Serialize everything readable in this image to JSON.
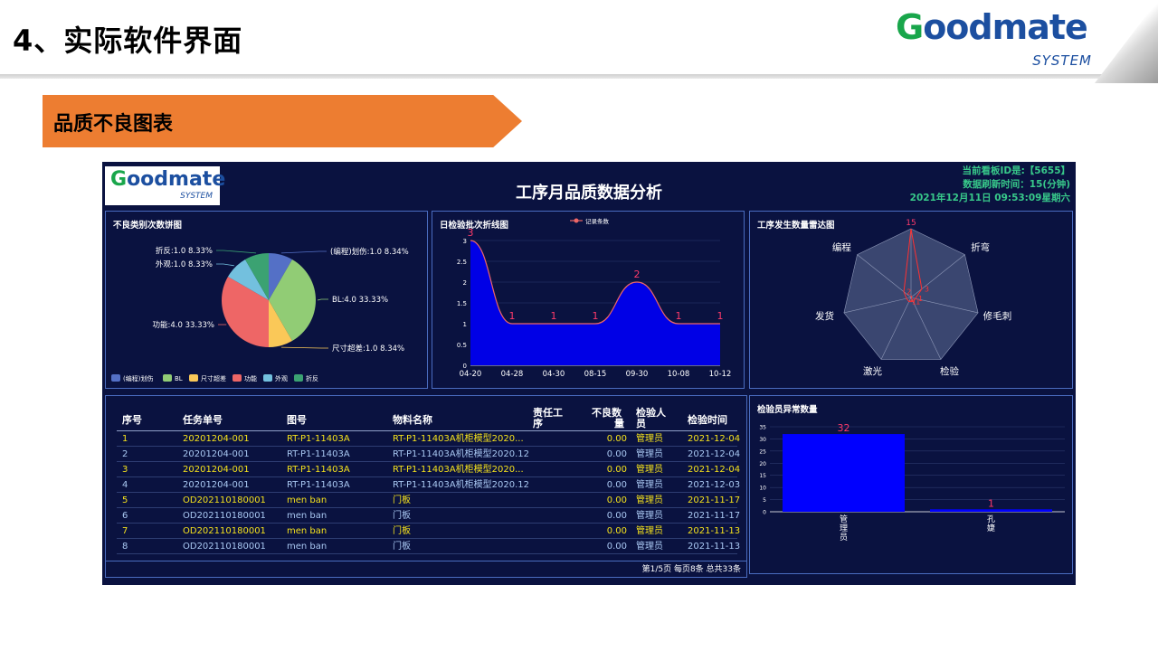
{
  "slide": {
    "title": "4、实际软件界面",
    "section": "品质不良图表",
    "logo_brand_g": "G",
    "logo_brand_rest": "oodmate",
    "logo_sub": "SYSTEM"
  },
  "dashboard": {
    "title": "工序月品质数据分析",
    "board_id": "当前看板ID是:【5655】",
    "refresh": "数据刷新时间：15(分钟)",
    "datetime": "2021年12月11日 09:53:09星期六"
  },
  "pie": {
    "title": "不良类别次数饼图",
    "slices": [
      {
        "name": "(编程)划伤",
        "value": 1.0,
        "percent": "8.34%",
        "label": "(编程)划伤:1.0 8.34%",
        "color": "#5470c6"
      },
      {
        "name": "BL",
        "value": 4.0,
        "percent": "33.33%",
        "label": "BL:4.0 33.33%",
        "color": "#91cc75"
      },
      {
        "name": "尺寸超差",
        "value": 1.0,
        "percent": "8.34%",
        "label": "尺寸超差:1.0 8.34%",
        "color": "#fac858"
      },
      {
        "name": "功能",
        "value": 4.0,
        "percent": "33.33%",
        "label": "功能:4.0 33.33%",
        "color": "#ee6666"
      },
      {
        "name": "外观",
        "value": 1.0,
        "percent": "8.33%",
        "label": "外观:1.0 8.33%",
        "color": "#73c0de"
      },
      {
        "name": "折反",
        "value": 1.0,
        "percent": "8.33%",
        "label": "折反:1.0 8.33%",
        "color": "#3ba272"
      }
    ]
  },
  "line": {
    "title": "日检验批次折线图",
    "legend": "记录条数",
    "x": [
      "04-20",
      "04-28",
      "04-30",
      "08-15",
      "09-30",
      "10-08",
      "10-12"
    ],
    "y": [
      3,
      1,
      1,
      1,
      2,
      1,
      1
    ],
    "yticks": [
      "0",
      "0.5",
      "1",
      "1.5",
      "2",
      "2.5",
      "3"
    ],
    "ylim": [
      0,
      3
    ]
  },
  "radar": {
    "title": "工序发生数量雷达图",
    "max": 15,
    "axes": [
      {
        "name": "折弯",
        "value": 3
      },
      {
        "name": "修毛刺",
        "value": 1
      },
      {
        "name": "检验",
        "value": 1
      },
      {
        "name": "激光",
        "value": 1
      },
      {
        "name": "发货",
        "value": 1
      },
      {
        "name": "编程",
        "value": 2
      }
    ],
    "top_value": 15,
    "top_value_label": "15"
  },
  "table": {
    "headers": {
      "seq": "序号",
      "task": "任务单号",
      "drawing": "图号",
      "material": "物料名称",
      "process_l1": "责任工",
      "process_l2": "序",
      "qty_l1": "不良数",
      "qty_l2": "量",
      "inspector_l1": "检验人",
      "inspector_l2": "员",
      "time": "检验时间"
    },
    "rows": [
      {
        "seq": "1",
        "task": "20201204-001",
        "drawing": "RT-P1-11403A",
        "material": "RT-P1-11403A机柜模型2020...",
        "qty": "0.00",
        "inspector": "管理员",
        "time": "2021-12-04",
        "color": "#f5e21c"
      },
      {
        "seq": "2",
        "task": "20201204-001",
        "drawing": "RT-P1-11403A",
        "material": "RT-P1-11403A机柜模型2020.12",
        "qty": "0.00",
        "inspector": "管理员",
        "time": "2021-12-04",
        "color": "#a9c8f2"
      },
      {
        "seq": "3",
        "task": "20201204-001",
        "drawing": "RT-P1-11403A",
        "material": "RT-P1-11403A机柜模型2020...",
        "qty": "0.00",
        "inspector": "管理员",
        "time": "2021-12-04",
        "color": "#f5e21c"
      },
      {
        "seq": "4",
        "task": "20201204-001",
        "drawing": "RT-P1-11403A",
        "material": "RT-P1-11403A机柜模型2020.12",
        "qty": "0.00",
        "inspector": "管理员",
        "time": "2021-12-03",
        "color": "#a9c8f2"
      },
      {
        "seq": "5",
        "task": "OD202110180001",
        "drawing": "men ban",
        "material": "门板",
        "qty": "0.00",
        "inspector": "管理员",
        "time": "2021-11-17",
        "color": "#f5e21c"
      },
      {
        "seq": "6",
        "task": "OD202110180001",
        "drawing": "men ban",
        "material": "门板",
        "qty": "0.00",
        "inspector": "管理员",
        "time": "2021-11-17",
        "color": "#a9c8f2"
      },
      {
        "seq": "7",
        "task": "OD202110180001",
        "drawing": "men ban",
        "material": "门板",
        "qty": "0.00",
        "inspector": "管理员",
        "time": "2021-11-13",
        "color": "#f5e21c"
      },
      {
        "seq": "8",
        "task": "OD202110180001",
        "drawing": "men ban",
        "material": "门板",
        "qty": "0.00",
        "inspector": "管理员",
        "time": "2021-11-13",
        "color": "#a9c8f2"
      }
    ],
    "pager": "第1/5页 每页8条 总共33条"
  },
  "bar": {
    "title": "检验员异常数量",
    "categories": [
      "管理员",
      "孔婕"
    ],
    "values": [
      32,
      1
    ],
    "yticks": [
      "0",
      "5",
      "10",
      "15",
      "20",
      "25",
      "30",
      "35"
    ],
    "ylim": [
      0,
      35
    ],
    "color": "#0000ff"
  },
  "chart_data": [
    {
      "type": "pie",
      "title": "不良类别次数饼图",
      "categories": [
        "(编程)划伤",
        "BL",
        "尺寸超差",
        "功能",
        "外观",
        "折反"
      ],
      "values": [
        1.0,
        4.0,
        1.0,
        4.0,
        1.0,
        1.0
      ],
      "percents": [
        "8.34%",
        "33.33%",
        "8.34%",
        "33.33%",
        "8.33%",
        "8.33%"
      ],
      "legend": "bottom-left"
    },
    {
      "type": "area",
      "title": "日检验批次折线图",
      "series": [
        {
          "name": "记录条数",
          "values": [
            3,
            1,
            1,
            1,
            2,
            1,
            1
          ]
        }
      ],
      "categories": [
        "04-20",
        "04-28",
        "04-30",
        "08-15",
        "09-30",
        "10-08",
        "10-12"
      ],
      "ylim": [
        0,
        3
      ],
      "legend": "top-center"
    },
    {
      "type": "radar",
      "title": "工序发生数量雷达图",
      "categories": [
        "折弯",
        "修毛刺",
        "检验",
        "激光",
        "发货",
        "编程"
      ],
      "max": 15
    },
    {
      "type": "bar",
      "title": "检验员异常数量",
      "categories": [
        "管理员",
        "孔婕"
      ],
      "values": [
        32,
        1
      ],
      "ylim": [
        0,
        35
      ]
    }
  ]
}
